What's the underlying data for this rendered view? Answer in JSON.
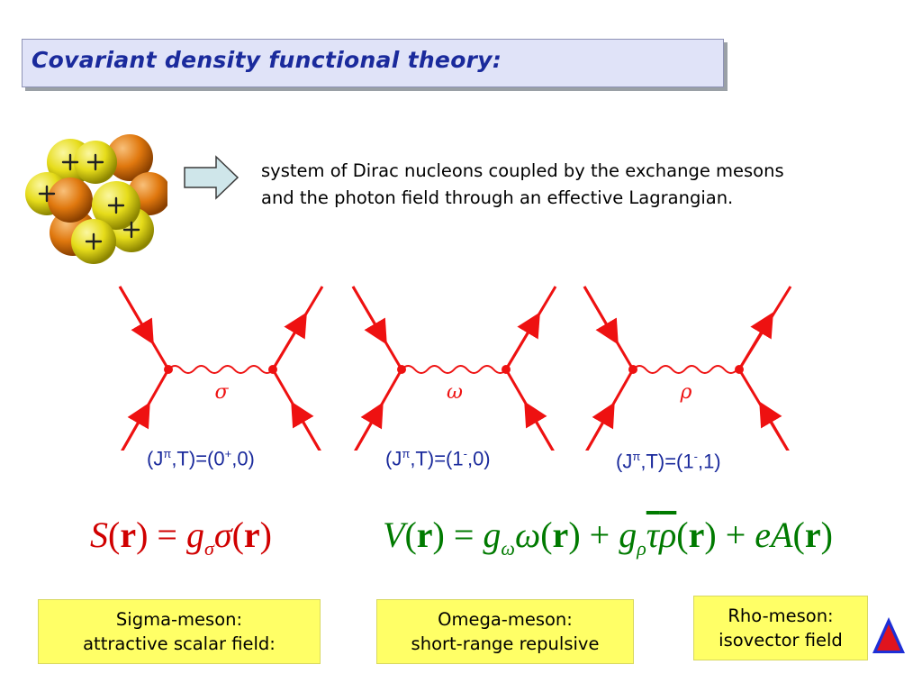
{
  "title": "Covariant density functional theory:",
  "intro": {
    "line1": "system of Dirac nucleons coupled by the exchange mesons",
    "line2": "and the photon field through an effective Lagrangian."
  },
  "diagrams": [
    {
      "meson_symbol": "σ",
      "qn_prefix": "(J",
      "qn_parity": "π",
      "qn_mid": ",T)=(0",
      "qn_sup": "+",
      "qn_end": ",0)"
    },
    {
      "meson_symbol": "ω",
      "qn_prefix": "(J",
      "qn_parity": "π",
      "qn_mid": ",T)=(1",
      "qn_sup": "-",
      "qn_end": ",0)"
    },
    {
      "meson_symbol": "ρ",
      "qn_prefix": "(J",
      "qn_parity": "π",
      "qn_mid": ",T)=(1",
      "qn_sup": "-",
      "qn_end": ",1)"
    }
  ],
  "equations": {
    "scalar": {
      "S": "S",
      "r": "r",
      "g": "g",
      "sub": "σ",
      "field": "σ"
    },
    "vector": {
      "V": "V",
      "r": "r",
      "g1": "g",
      "sub1": "ω",
      "field1": "ω",
      "g2": "g",
      "sub2": "ρ",
      "tau": "τ",
      "rho": "ρ",
      "e": "e",
      "A": "A"
    }
  },
  "notes": {
    "sigma": {
      "line1": "Sigma-meson:",
      "line2": "attractive scalar field:"
    },
    "omega": {
      "line1": "Omega-meson:",
      "line2": "short-range repulsive"
    },
    "rho": {
      "line1": "Rho-meson:",
      "line2": "isovector field"
    }
  },
  "colors": {
    "title_text": "#1a2a9c",
    "title_bg": "#e0e3f8",
    "diagram_lines": "#ee1111",
    "arrow_fill": "#cfe6ea",
    "label_blue": "#1a2a9c",
    "scalar_eq": "#d00000",
    "vector_eq": "#007a00",
    "note_bg": "#ffff66",
    "nav_triangle_red": "#e0141e",
    "nav_triangle_blue": "#1e2fd6"
  },
  "icons": {
    "nucleus": "nucleus-illustration-icon",
    "arrow": "right-arrow-icon",
    "nav": "navigation-triangle-icon"
  }
}
